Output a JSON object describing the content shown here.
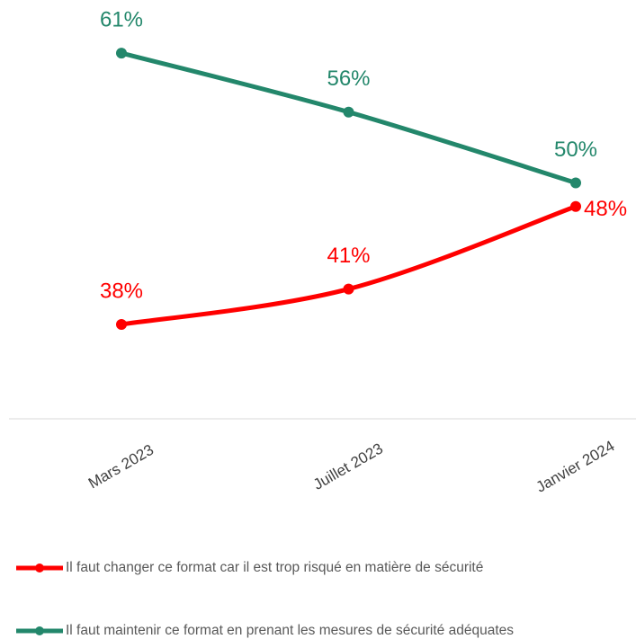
{
  "chart_data": {
    "type": "line",
    "categories": [
      "Mars 2023",
      "Juillet 2023",
      "Janvier 2024"
    ],
    "series": [
      {
        "name": "Il faut changer ce format car il est trop risqué en matière de sécurité",
        "color": "#ff0000",
        "values": [
          38,
          41,
          48
        ],
        "value_labels": [
          "38%",
          "41%",
          "48%"
        ]
      },
      {
        "name": "Il faut maintenir ce format en prenant les mesures de sécurité adéquates",
        "color": "#23876b",
        "values": [
          61,
          56,
          50
        ],
        "value_labels": [
          "61%",
          "56%",
          "50%"
        ]
      }
    ],
    "ylim": [
      30,
      65.5
    ]
  }
}
